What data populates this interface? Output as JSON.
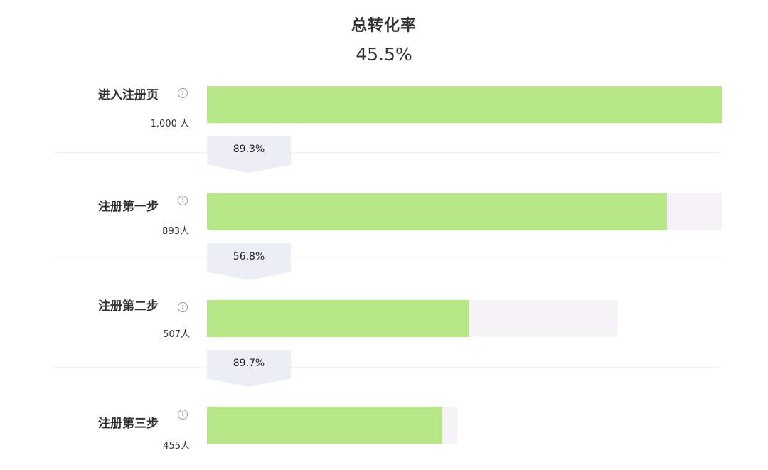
{
  "chart_data": {
    "type": "bar",
    "title": "总转化率",
    "total_rate": "45.5%",
    "stages": [
      {
        "label": "进入注册页",
        "count_text": "1,000 人",
        "value": 1000
      },
      {
        "label": "注册第一步",
        "count_text": "893人",
        "value": 893
      },
      {
        "label": "注册第二步",
        "count_text": "507人",
        "value": 507
      },
      {
        "label": "注册第三步",
        "count_text": "455人",
        "value": 455
      }
    ],
    "conversions": [
      "89.3%",
      "56.8%",
      "89.7%"
    ],
    "colors": {
      "bar": "#b6e887",
      "track": "#f5f3f5",
      "arrow": "#eceef6"
    }
  },
  "icons": {
    "info": "info-icon"
  }
}
